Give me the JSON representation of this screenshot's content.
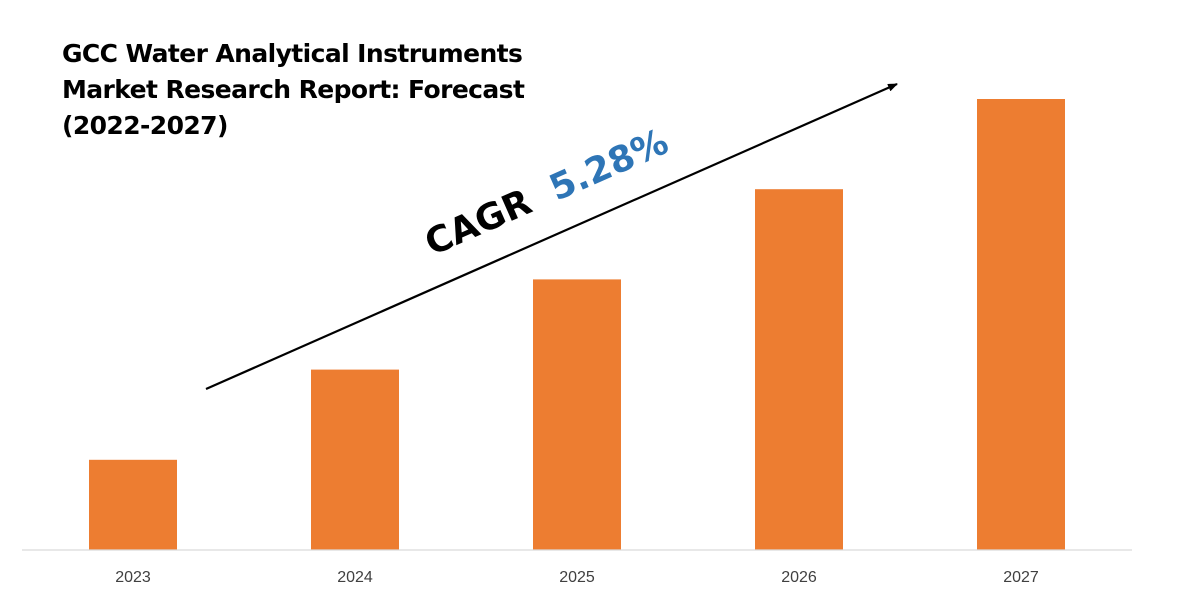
{
  "chart_data": {
    "type": "bar",
    "title": "GCC Water Analytical Instruments Market Research Report: Forecast (2022-2027)",
    "categories": [
      "2023",
      "2024",
      "2025",
      "2026",
      "2027"
    ],
    "values": [
      1,
      2,
      3,
      4,
      5
    ],
    "ylim": [
      0,
      5.1
    ],
    "grid": false,
    "legend": "none",
    "bar_color": "#ED7D31",
    "annotation": {
      "label": "CAGR",
      "value": "5.28%",
      "label_color": "#000000",
      "value_color": "#2E75B6"
    }
  }
}
